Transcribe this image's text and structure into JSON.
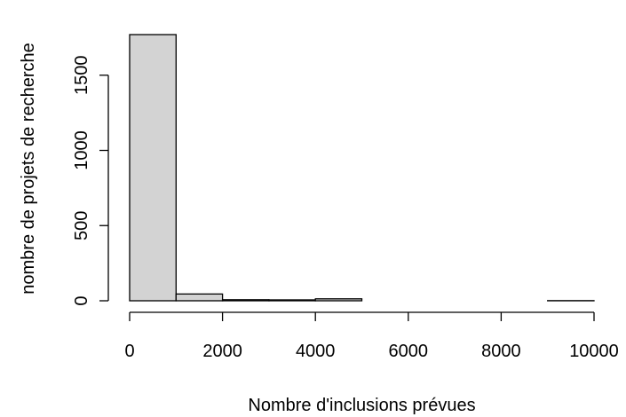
{
  "chart_data": {
    "type": "bar",
    "subtype": "histogram",
    "title": "",
    "xlabel": "Nombre d'inclusions prévues",
    "ylabel": "nombre de projets de recherche",
    "bins": [
      {
        "from": 0,
        "to": 1000,
        "count": 1770
      },
      {
        "from": 1000,
        "to": 2000,
        "count": 45
      },
      {
        "from": 2000,
        "to": 3000,
        "count": 7
      },
      {
        "from": 3000,
        "to": 4000,
        "count": 6
      },
      {
        "from": 4000,
        "to": 5000,
        "count": 13
      },
      {
        "from": 5000,
        "to": 6000,
        "count": 0
      },
      {
        "from": 6000,
        "to": 7000,
        "count": 0
      },
      {
        "from": 7000,
        "to": 8000,
        "count": 0
      },
      {
        "from": 8000,
        "to": 9000,
        "count": 0
      },
      {
        "from": 9000,
        "to": 10000,
        "count": 1
      }
    ],
    "xlim": [
      0,
      10000
    ],
    "ylim": [
      0,
      1770
    ],
    "x_ticks": [
      "0",
      "2000",
      "4000",
      "6000",
      "8000",
      "10000"
    ],
    "y_ticks": [
      "0",
      "500",
      "1000",
      "1500"
    ],
    "bar_fill": "#d3d3d3",
    "bar_stroke": "#000000",
    "grid": false
  }
}
